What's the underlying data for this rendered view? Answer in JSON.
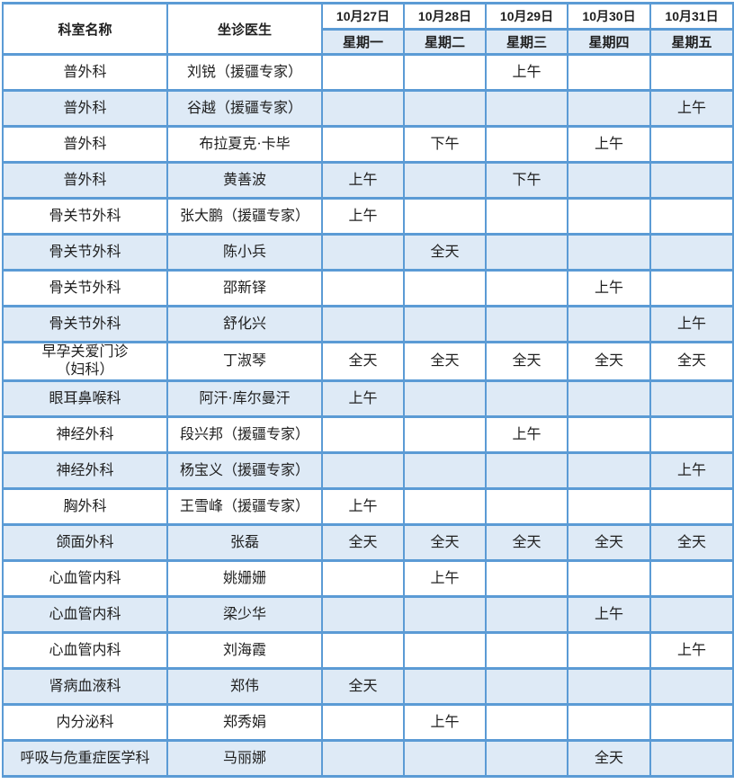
{
  "colors": {
    "border_blue": "#5B9BD5",
    "stripe_blue": "#DEEAF6",
    "text": "#1F1F1F"
  },
  "table": {
    "header": {
      "department": "科室名称",
      "doctor": "坐诊医生",
      "days": [
        {
          "date": "10月27日",
          "weekday": "星期一"
        },
        {
          "date": "10月28日",
          "weekday": "星期二"
        },
        {
          "date": "10月29日",
          "weekday": "星期三"
        },
        {
          "date": "10月30日",
          "weekday": "星期四"
        },
        {
          "date": "10月31日",
          "weekday": "星期五"
        }
      ]
    },
    "rows": [
      {
        "department": "普外科",
        "doctor": "刘锐（援疆专家）",
        "schedule": [
          "",
          "",
          "上午",
          "",
          ""
        ]
      },
      {
        "department": "普外科",
        "doctor": "谷越（援疆专家）",
        "schedule": [
          "",
          "",
          "",
          "",
          "上午"
        ]
      },
      {
        "department": "普外科",
        "doctor": "布拉夏克·卡毕",
        "schedule": [
          "",
          "下午",
          "",
          "上午",
          ""
        ]
      },
      {
        "department": "普外科",
        "doctor": "黄善波",
        "schedule": [
          "上午",
          "",
          "下午",
          "",
          ""
        ]
      },
      {
        "department": "骨关节外科",
        "doctor": "张大鹏（援疆专家）",
        "schedule": [
          "上午",
          "",
          "",
          "",
          ""
        ]
      },
      {
        "department": "骨关节外科",
        "doctor": "陈小兵",
        "schedule": [
          "",
          "全天",
          "",
          "",
          ""
        ]
      },
      {
        "department": "骨关节外科",
        "doctor": "邵新铎",
        "schedule": [
          "",
          "",
          "",
          "上午",
          ""
        ]
      },
      {
        "department": "骨关节外科",
        "doctor": "舒化兴",
        "schedule": [
          "",
          "",
          "",
          "",
          "上午"
        ]
      },
      {
        "department": "早孕关爱门诊\n（妇科）",
        "doctor": "丁淑琴",
        "schedule": [
          "全天",
          "全天",
          "全天",
          "全天",
          "全天"
        ]
      },
      {
        "department": "眼耳鼻喉科",
        "doctor": "阿汗·库尔曼汗",
        "schedule": [
          "上午",
          "",
          "",
          "",
          ""
        ]
      },
      {
        "department": "神经外科",
        "doctor": "段兴邦（援疆专家）",
        "schedule": [
          "",
          "",
          "上午",
          "",
          ""
        ]
      },
      {
        "department": "神经外科",
        "doctor": "杨宝义（援疆专家）",
        "schedule": [
          "",
          "",
          "",
          "",
          "上午"
        ]
      },
      {
        "department": "胸外科",
        "doctor": "王雪峰（援疆专家）",
        "schedule": [
          "上午",
          "",
          "",
          "",
          ""
        ]
      },
      {
        "department": "颌面外科",
        "doctor": "张磊",
        "schedule": [
          "全天",
          "全天",
          "全天",
          "全天",
          "全天"
        ]
      },
      {
        "department": "心血管内科",
        "doctor": "姚姗姗",
        "schedule": [
          "",
          "上午",
          "",
          "",
          ""
        ]
      },
      {
        "department": "心血管内科",
        "doctor": "梁少华",
        "schedule": [
          "",
          "",
          "",
          "上午",
          ""
        ]
      },
      {
        "department": "心血管内科",
        "doctor": "刘海霞",
        "schedule": [
          "",
          "",
          "",
          "",
          "上午"
        ]
      },
      {
        "department": "肾病血液科",
        "doctor": "郑伟",
        "schedule": [
          "全天",
          "",
          "",
          "",
          ""
        ]
      },
      {
        "department": "内分泌科",
        "doctor": "郑秀娟",
        "schedule": [
          "",
          "上午",
          "",
          "",
          ""
        ]
      },
      {
        "department": "呼吸与危重症医学科",
        "doctor": "马丽娜",
        "schedule": [
          "",
          "",
          "",
          "全天",
          ""
        ]
      }
    ]
  }
}
